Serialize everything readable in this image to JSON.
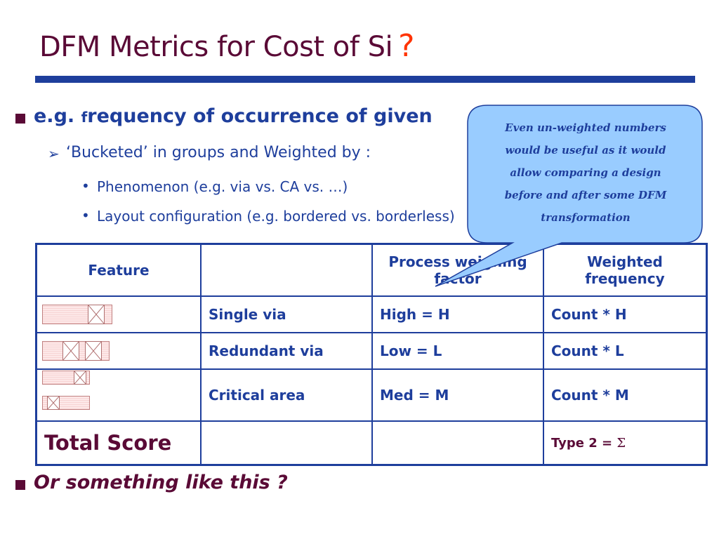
{
  "title": {
    "text": "DFM Metrics for Cost of Si",
    "question": "?"
  },
  "bullets": {
    "main_prefix": "e.g. ",
    "main_f": "f",
    "main_rest": "requency of occurrence of given",
    "sub": "‘Bucketed’ in groups and Weighted by :",
    "items": [
      "Phenomenon (e.g. via vs. CA vs. …)",
      "Layout configuration (e.g. bordered vs. borderless)"
    ],
    "bottom": "Or something like this ?"
  },
  "callout": {
    "lines": [
      "Even un-weighted numbers",
      "would be useful as it would",
      "allow comparing a design",
      "before and after some DFM",
      "transformation"
    ]
  },
  "table": {
    "headers": [
      "Feature",
      "",
      "Process weighing factor",
      "Weighted frequency"
    ],
    "rows": [
      {
        "name": "Single via",
        "factor": "High = H",
        "freq": "Count * H"
      },
      {
        "name": "Redundant via",
        "factor": "Low = L",
        "freq": "Count * L"
      },
      {
        "name": "Critical area",
        "factor": "Med = M",
        "freq": "Count * M"
      }
    ],
    "total": {
      "label": "Total Score",
      "value_prefix": "Type 2 = ",
      "sigma": "Σ"
    }
  },
  "colors": {
    "title": "#5a0a36",
    "accent_blue": "#1e3e9c",
    "question": "#ff3300",
    "callout_fill": "#99ccff"
  }
}
